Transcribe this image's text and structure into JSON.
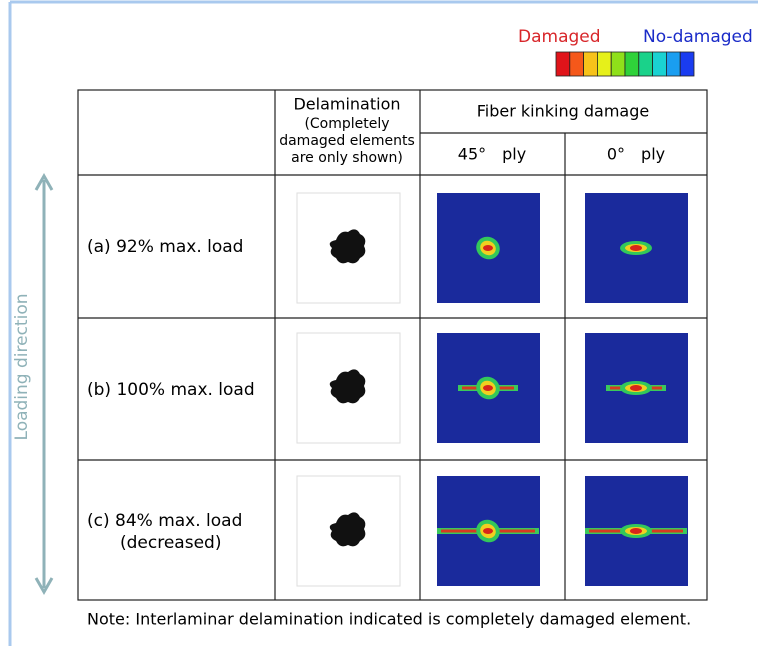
{
  "legend": {
    "damaged": "Damaged",
    "no_damaged": "No-damaged"
  },
  "axis_label": "Loading direction",
  "table": {
    "header": {
      "delamination": [
        "Delamination",
        "(Completely",
        "damaged elements",
        "are only shown)"
      ],
      "fiber": "Fiber kinking damage",
      "ply_45": "45°　ply",
      "ply_0": "0°　ply"
    },
    "rows": [
      [
        "(a) 92% max. load"
      ],
      [
        "(b) 100% max. load"
      ],
      [
        "(c) 84% max. load",
        "(decreased)"
      ]
    ]
  },
  "note": "Note: Interlaminar delamination indicated is completely damaged element."
}
